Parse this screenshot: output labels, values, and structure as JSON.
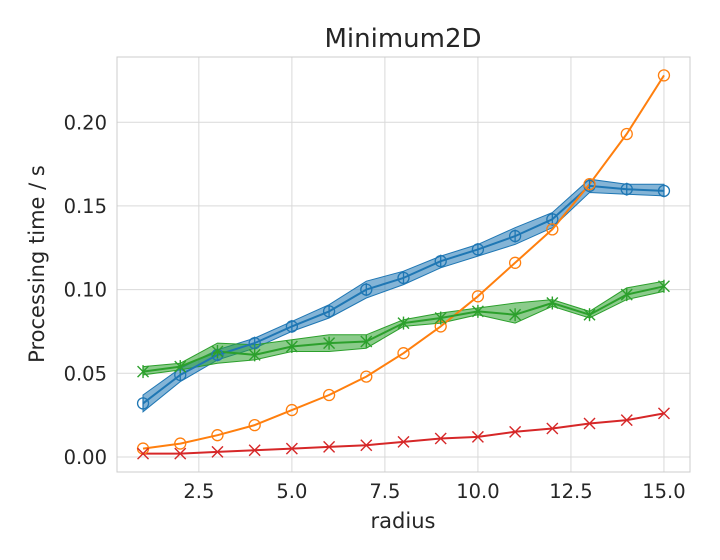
{
  "chart_data": {
    "type": "line",
    "title": "Minimum2D",
    "xlabel": "radius",
    "ylabel": "Processing time / s",
    "xlim": [
      0.3,
      15.7
    ],
    "ylim": [
      -0.009,
      0.239
    ],
    "xticks": [
      2.5,
      5.0,
      7.5,
      10.0,
      12.5,
      15.0
    ],
    "xtick_labels": [
      "2.5",
      "5.0",
      "7.5",
      "10.0",
      "12.5",
      "15.0"
    ],
    "yticks": [
      0.0,
      0.05,
      0.1,
      0.15,
      0.2
    ],
    "ytick_labels": [
      "0.00",
      "0.05",
      "0.10",
      "0.15",
      "0.20"
    ],
    "grid": true,
    "background": "#ffffff",
    "grid_color": "#d9d9d9",
    "x": [
      1,
      2,
      3,
      4,
      5,
      6,
      7,
      8,
      9,
      10,
      11,
      12,
      13,
      14,
      15
    ],
    "series": [
      {
        "color": "#1f77b4",
        "marker": "circle-plus",
        "values": [
          0.032,
          0.049,
          0.061,
          0.068,
          0.078,
          0.087,
          0.1,
          0.107,
          0.117,
          0.124,
          0.132,
          0.142,
          0.162,
          0.16,
          0.159
        ],
        "band_low": [
          0.027,
          0.045,
          0.058,
          0.065,
          0.075,
          0.083,
          0.095,
          0.103,
          0.113,
          0.12,
          0.127,
          0.137,
          0.158,
          0.157,
          0.156
        ],
        "band_high": [
          0.037,
          0.053,
          0.064,
          0.071,
          0.081,
          0.091,
          0.105,
          0.111,
          0.12,
          0.127,
          0.137,
          0.146,
          0.166,
          0.163,
          0.163
        ]
      },
      {
        "color": "#ff7f0e",
        "marker": "open-circle",
        "values": [
          0.005,
          0.008,
          0.013,
          0.019,
          0.028,
          0.037,
          0.048,
          0.062,
          0.078,
          0.096,
          0.116,
          0.136,
          0.163,
          0.193,
          0.228
        ]
      },
      {
        "color": "#2ca02c",
        "marker": "star-x",
        "values": [
          0.051,
          0.054,
          0.063,
          0.061,
          0.066,
          0.068,
          0.069,
          0.08,
          0.083,
          0.087,
          0.085,
          0.092,
          0.085,
          0.097,
          0.102
        ],
        "band_low": [
          0.049,
          0.052,
          0.056,
          0.058,
          0.063,
          0.063,
          0.065,
          0.078,
          0.08,
          0.085,
          0.08,
          0.09,
          0.083,
          0.094,
          0.099
        ],
        "band_high": [
          0.054,
          0.056,
          0.068,
          0.067,
          0.07,
          0.073,
          0.073,
          0.082,
          0.086,
          0.089,
          0.092,
          0.094,
          0.087,
          0.101,
          0.105
        ]
      },
      {
        "color": "#d62728",
        "marker": "x",
        "values": [
          0.002,
          0.002,
          0.003,
          0.004,
          0.005,
          0.006,
          0.007,
          0.009,
          0.011,
          0.012,
          0.015,
          0.017,
          0.02,
          0.022,
          0.026
        ]
      }
    ]
  }
}
